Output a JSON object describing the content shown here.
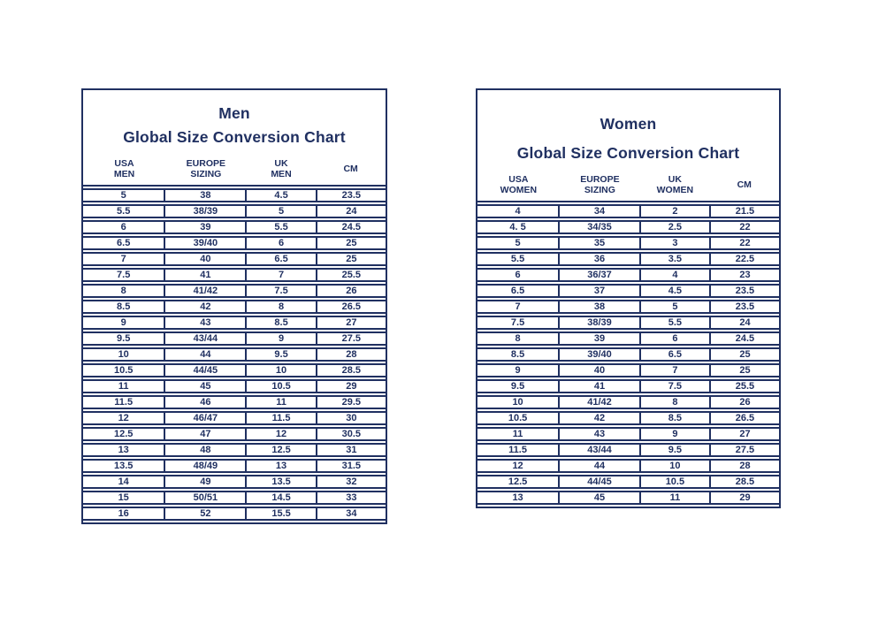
{
  "colors": {
    "ink": "#203061",
    "background": "#ffffff"
  },
  "charts": [
    {
      "name": "men",
      "title": "Men",
      "subtitle": "Global Size Conversion Chart",
      "columns": [
        {
          "line1": "USA",
          "line2": "MEN"
        },
        {
          "line1": "EUROPE",
          "line2": "SIZING"
        },
        {
          "line1": "UK",
          "line2": "MEN"
        },
        {
          "line1": "CM",
          "line2": ""
        }
      ],
      "rows": [
        [
          "5",
          "38",
          "4.5",
          "23.5"
        ],
        [
          "5.5",
          "38/39",
          "5",
          "24"
        ],
        [
          "6",
          "39",
          "5.5",
          "24.5"
        ],
        [
          "6.5",
          "39/40",
          "6",
          "25"
        ],
        [
          "7",
          "40",
          "6.5",
          "25"
        ],
        [
          "7.5",
          "41",
          "7",
          "25.5"
        ],
        [
          "8",
          "41/42",
          "7.5",
          "26"
        ],
        [
          "8.5",
          "42",
          "8",
          "26.5"
        ],
        [
          "9",
          "43",
          "8.5",
          "27"
        ],
        [
          "9.5",
          "43/44",
          "9",
          "27.5"
        ],
        [
          "10",
          "44",
          "9.5",
          "28"
        ],
        [
          "10.5",
          "44/45",
          "10",
          "28.5"
        ],
        [
          "11",
          "45",
          "10.5",
          "29"
        ],
        [
          "11.5",
          "46",
          "11",
          "29.5"
        ],
        [
          "12",
          "46/47",
          "11.5",
          "30"
        ],
        [
          "12.5",
          "47",
          "12",
          "30.5"
        ],
        [
          "13",
          "48",
          "12.5",
          "31"
        ],
        [
          "13.5",
          "48/49",
          "13",
          "31.5"
        ],
        [
          "14",
          "49",
          "13.5",
          "32"
        ],
        [
          "15",
          "50/51",
          "14.5",
          "33"
        ],
        [
          "16",
          "52",
          "15.5",
          "34"
        ]
      ]
    },
    {
      "name": "women",
      "title": "Women",
      "subtitle": "Global Size Conversion Chart",
      "columns": [
        {
          "line1": "USA",
          "line2": "WOMEN"
        },
        {
          "line1": "EUROPE",
          "line2": "SIZING"
        },
        {
          "line1": "UK",
          "line2": "WOMEN"
        },
        {
          "line1": "CM",
          "line2": ""
        }
      ],
      "rows": [
        [
          "4",
          "34",
          "2",
          "21.5"
        ],
        [
          "4. 5",
          "34/35",
          "2.5",
          "22"
        ],
        [
          "5",
          "35",
          "3",
          "22"
        ],
        [
          "5.5",
          "36",
          "3.5",
          "22.5"
        ],
        [
          "6",
          "36/37",
          "4",
          "23"
        ],
        [
          "6.5",
          "37",
          "4.5",
          "23.5"
        ],
        [
          "7",
          "38",
          "5",
          "23.5"
        ],
        [
          "7.5",
          "38/39",
          "5.5",
          "24"
        ],
        [
          "8",
          "39",
          "6",
          "24.5"
        ],
        [
          "8.5",
          "39/40",
          "6.5",
          "25"
        ],
        [
          "9",
          "40",
          "7",
          "25"
        ],
        [
          "9.5",
          "41",
          "7.5",
          "25.5"
        ],
        [
          "10",
          "41/42",
          "8",
          "26"
        ],
        [
          "10.5",
          "42",
          "8.5",
          "26.5"
        ],
        [
          "11",
          "43",
          "9",
          "27"
        ],
        [
          "11.5",
          "43/44",
          "9.5",
          "27.5"
        ],
        [
          "12",
          "44",
          "10",
          "28"
        ],
        [
          "12.5",
          "44/45",
          "10.5",
          "28.5"
        ],
        [
          "13",
          "45",
          "11",
          "29"
        ]
      ]
    }
  ]
}
